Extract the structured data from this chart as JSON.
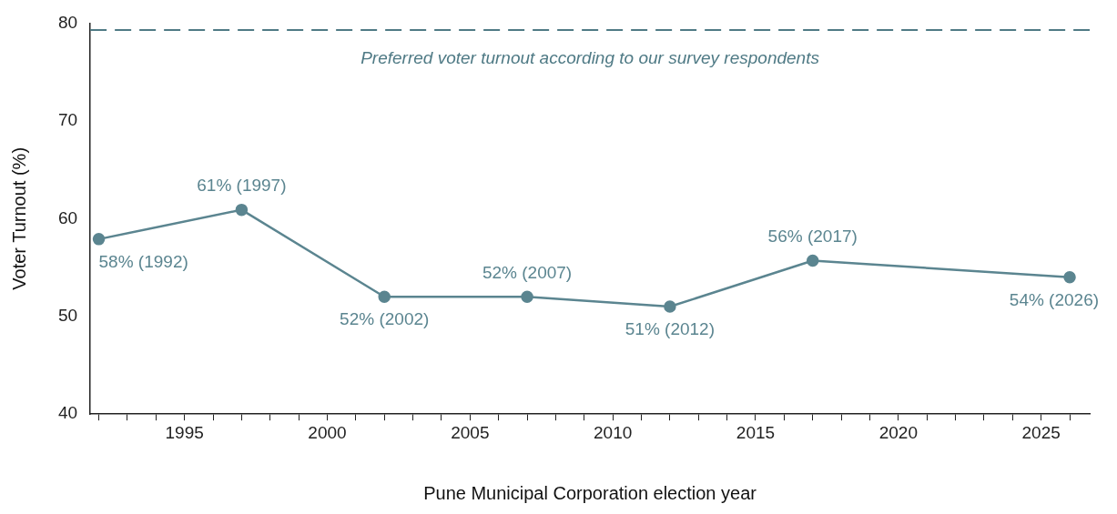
{
  "chart_data": {
    "type": "line",
    "xlabel": "Pune Municipal Corporation election year",
    "ylabel": "Voter Turnout (%)",
    "x": [
      1992,
      1997,
      2002,
      2007,
      2012,
      2017,
      2026
    ],
    "series": [
      {
        "color": "#5b8590",
        "values": [
          57.9,
          60.9,
          52,
          52,
          51,
          55.7,
          54
        ],
        "value_labels": [
          "58% (1992)",
          "61% (1997)",
          "52% (2002)",
          "52% (2007)",
          "51% (2012)",
          "56% (2017)",
          "54% (2026)"
        ]
      }
    ],
    "xlim": [
      1991.7,
      2026.7
    ],
    "xticks": [
      {
        "value": 1992,
        "label": null
      },
      {
        "value": 1993,
        "label": null
      },
      {
        "value": 1994,
        "label": null
      },
      1995,
      {
        "value": 1996,
        "label": null
      },
      {
        "value": 1997,
        "label": null
      },
      {
        "value": 1998,
        "label": null
      },
      {
        "value": 1999,
        "label": null
      },
      2000,
      {
        "value": 2001,
        "label": null
      },
      {
        "value": 2002,
        "label": null
      },
      {
        "value": 2003,
        "label": null
      },
      {
        "value": 2004,
        "label": null
      },
      2005,
      {
        "value": 2006,
        "label": null
      },
      {
        "value": 2007,
        "label": null
      },
      {
        "value": 2008,
        "label": null
      },
      {
        "value": 2009,
        "label": null
      },
      2010,
      {
        "value": 2011,
        "label": null
      },
      {
        "value": 2012,
        "label": null
      },
      {
        "value": 2013,
        "label": null
      },
      {
        "value": 2014,
        "label": null
      },
      2015,
      {
        "value": 2016,
        "label": null
      },
      {
        "value": 2017,
        "label": null
      },
      {
        "value": 2018,
        "label": null
      },
      {
        "value": 2019,
        "label": null
      },
      2020,
      {
        "value": 2021,
        "label": null
      },
      {
        "value": 2022,
        "label": null
      },
      {
        "value": 2023,
        "label": null
      },
      {
        "value": 2024,
        "label": null
      },
      2025,
      {
        "value": 2026,
        "label": null
      }
    ],
    "ylim": [
      40,
      80
    ],
    "yticks": [
      40,
      50,
      60,
      70,
      80
    ],
    "marker": "circle",
    "line_style": "solid",
    "ref_lines": [
      {
        "axis": "y",
        "value": 79.3,
        "label": "Preferred voter turnout according to our survey respondents",
        "color": "#4f7a85",
        "line_style": "dashed"
      }
    ]
  }
}
